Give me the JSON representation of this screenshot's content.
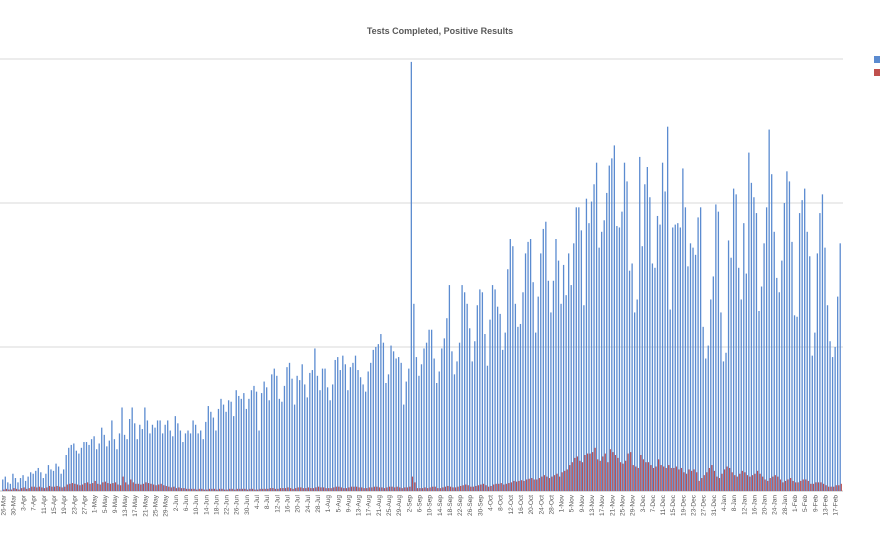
{
  "chart_data": {
    "type": "bar",
    "title": "Tests Completed, Positive Results",
    "xlabel": "",
    "ylabel": "",
    "units_note": "thousands (no y tick labels shown)",
    "ylim": [
      0,
      30
    ],
    "grid_step": 10,
    "grid": true,
    "legend_placement": "right",
    "start_date": "26-Mar",
    "tick_every_days": 4,
    "tick_labels": [
      "26-Mar",
      "30-Mar",
      "3-Apr",
      "7-Apr",
      "11-Apr",
      "15-Apr",
      "19-Apr",
      "23-Apr",
      "27-Apr",
      "1-May",
      "5-May",
      "9-May",
      "13-May",
      "17-May",
      "21-May",
      "25-May",
      "29-May",
      "2-Jun",
      "6-Jun",
      "10-Jun",
      "14-Jun",
      "18-Jun",
      "22-Jun",
      "26-Jun",
      "30-Jun",
      "4-Jul",
      "8-Jul",
      "12-Jul",
      "16-Jul",
      "20-Jul",
      "24-Jul",
      "28-Jul",
      "1-Aug",
      "5-Aug",
      "9-Aug",
      "13-Aug",
      "17-Aug",
      "21-Aug",
      "25-Aug",
      "29-Aug",
      "2-Sep",
      "6-Sep",
      "10-Sep",
      "14-Sep",
      "18-Sep",
      "22-Sep",
      "26-Sep",
      "30-Sep",
      "4-Oct",
      "8-Oct",
      "12-Oct",
      "16-Oct",
      "20-Oct",
      "24-Oct",
      "28-Oct",
      "1-Nov",
      "5-Nov",
      "9-Nov",
      "13-Nov",
      "17-Nov",
      "21-Nov",
      "25-Nov",
      "29-Nov",
      "3-Dec",
      "7-Dec",
      "11-Dec",
      "15-Dec",
      "19-Dec",
      "23-Dec",
      "27-Dec",
      "31-Dec",
      "4-Jan",
      "8-Jan",
      "12-Jan",
      "16-Jan",
      "20-Jan",
      "24-Jan",
      "28-Jan",
      "1-Feb",
      "5-Feb",
      "9-Feb",
      "13-Feb",
      "17-Feb"
    ],
    "series": [
      {
        "name": "Tests Completed",
        "color": "#5b8bd0",
        "values": [
          0.8,
          1.0,
          0.6,
          0.5,
          1.2,
          0.9,
          0.6,
          0.9,
          1.1,
          0.7,
          1.0,
          1.3,
          1.2,
          1.4,
          1.6,
          1.3,
          0.9,
          1.2,
          1.8,
          1.5,
          1.4,
          1.9,
          1.7,
          1.2,
          1.5,
          2.5,
          3.0,
          3.2,
          3.3,
          2.8,
          2.6,
          3.0,
          3.4,
          3.4,
          3.2,
          3.6,
          3.8,
          2.9,
          3.3,
          4.4,
          3.9,
          3.1,
          3.5,
          4.9,
          3.6,
          2.9,
          4.0,
          5.8,
          3.9,
          3.6,
          5.0,
          5.8,
          4.7,
          3.6,
          4.6,
          4.3,
          5.8,
          4.9,
          4.0,
          4.6,
          4.4,
          4.9,
          4.9,
          4.0,
          4.6,
          4.9,
          4.2,
          3.8,
          5.2,
          4.7,
          4.2,
          3.4,
          4.0,
          4.2,
          4.0,
          4.9,
          4.6,
          4.0,
          4.2,
          3.6,
          4.8,
          5.9,
          5.5,
          5.1,
          4.2,
          5.7,
          6.4,
          6.0,
          5.5,
          6.3,
          6.2,
          5.2,
          7.0,
          6.6,
          6.4,
          6.8,
          5.7,
          6.4,
          7.0,
          7.3,
          6.9,
          4.2,
          6.8,
          7.6,
          7.2,
          6.3,
          8.1,
          8.5,
          8.0,
          6.4,
          6.2,
          7.3,
          8.6,
          8.9,
          7.8,
          6.0,
          8.0,
          7.7,
          8.8,
          7.4,
          6.5,
          8.2,
          8.4,
          9.9,
          8.0,
          7.0,
          8.5,
          8.5,
          7.2,
          6.3,
          7.4,
          9.1,
          9.3,
          8.4,
          9.4,
          8.8,
          7.0,
          8.6,
          8.9,
          9.4,
          8.4,
          7.9,
          7.4,
          6.9,
          8.3,
          8.9,
          9.8,
          10.0,
          10.2,
          10.9,
          10.3,
          7.5,
          8.1,
          10.1,
          9.7,
          9.2,
          9.3,
          8.9,
          6.0,
          7.6,
          8.5,
          29.8,
          13.0,
          9.3,
          8.0,
          8.8,
          9.9,
          10.3,
          11.2,
          11.2,
          9.2,
          7.5,
          8.3,
          9.9,
          10.6,
          12.0,
          14.3,
          9.7,
          8.1,
          9.0,
          10.3,
          14.3,
          13.8,
          13.0,
          11.3,
          9.0,
          10.4,
          12.9,
          14.0,
          13.8,
          10.9,
          8.7,
          11.9,
          14.3,
          14.0,
          12.8,
          12.3,
          9.8,
          11.0,
          15.4,
          17.5,
          17.0,
          13.0,
          11.4,
          11.6,
          13.8,
          16.5,
          17.3,
          17.5,
          14.5,
          11.0,
          13.5,
          16.5,
          18.2,
          18.7,
          14.6,
          12.4,
          14.6,
          17.5,
          16.0,
          13.0,
          15.7,
          13.6,
          16.5,
          14.3,
          17.2,
          19.7,
          19.7,
          18.1,
          12.9,
          20.3,
          18.6,
          20.1,
          21.3,
          22.8,
          16.9,
          18.0,
          18.8,
          20.7,
          22.6,
          23.1,
          24.0,
          18.4,
          18.3,
          19.4,
          22.8,
          21.5,
          15.3,
          15.8,
          12.4,
          13.3,
          23.2,
          17.0,
          21.3,
          22.5,
          20.4,
          15.8,
          15.5,
          19.1,
          18.5,
          22.8,
          20.8,
          25.3,
          12.6,
          18.3,
          18.5,
          18.6,
          18.3,
          22.4,
          19.7,
          15.6,
          17.2,
          16.9,
          16.4,
          19.0,
          19.7,
          11.4,
          9.2,
          10.1,
          13.3,
          14.9,
          19.9,
          19.4,
          12.4,
          9.0,
          9.6,
          17.4,
          16.2,
          21.0,
          20.6,
          15.5,
          13.3,
          18.6,
          15.1,
          23.5,
          21.4,
          20.4,
          19.3,
          12.5,
          14.2,
          17.2,
          19.7,
          25.1,
          22.0,
          18.0,
          14.8,
          13.8,
          16.0,
          20.0,
          22.2,
          21.5,
          17.3,
          12.2,
          12.1,
          19.3,
          20.2,
          21.0,
          18.0,
          16.3,
          9.4,
          11.0,
          16.5,
          19.3,
          20.6,
          16.9,
          12.9,
          10.4,
          9.3,
          10.0,
          13.5,
          17.2
        ]
      },
      {
        "name": "Positive Results",
        "color": "#c0504d",
        "values": [
          0.1,
          0.15,
          0.1,
          0.1,
          0.2,
          0.15,
          0.1,
          0.2,
          0.25,
          0.15,
          0.2,
          0.3,
          0.3,
          0.25,
          0.3,
          0.25,
          0.2,
          0.25,
          0.35,
          0.3,
          0.3,
          0.35,
          0.3,
          0.25,
          0.3,
          0.45,
          0.5,
          0.55,
          0.5,
          0.45,
          0.4,
          0.45,
          0.55,
          0.6,
          0.5,
          0.55,
          0.7,
          0.5,
          0.45,
          0.6,
          0.65,
          0.55,
          0.5,
          0.55,
          0.6,
          0.45,
          0.4,
          1.0,
          0.6,
          0.45,
          0.8,
          0.6,
          0.5,
          0.5,
          0.45,
          0.5,
          0.6,
          0.55,
          0.5,
          0.45,
          0.4,
          0.45,
          0.5,
          0.4,
          0.35,
          0.3,
          0.25,
          0.3,
          0.2,
          0.25,
          0.2,
          0.2,
          0.15,
          0.15,
          0.15,
          0.15,
          0.1,
          0.15,
          0.15,
          0.1,
          0.1,
          0.15,
          0.15,
          0.15,
          0.1,
          0.15,
          0.15,
          0.1,
          0.1,
          0.15,
          0.15,
          0.1,
          0.15,
          0.15,
          0.15,
          0.15,
          0.1,
          0.15,
          0.15,
          0.1,
          0.1,
          0.15,
          0.15,
          0.15,
          0.15,
          0.2,
          0.2,
          0.15,
          0.15,
          0.2,
          0.2,
          0.2,
          0.25,
          0.2,
          0.15,
          0.2,
          0.25,
          0.25,
          0.2,
          0.2,
          0.25,
          0.2,
          0.2,
          0.25,
          0.3,
          0.25,
          0.25,
          0.2,
          0.2,
          0.2,
          0.25,
          0.3,
          0.3,
          0.25,
          0.2,
          0.2,
          0.25,
          0.3,
          0.3,
          0.3,
          0.25,
          0.25,
          0.2,
          0.2,
          0.25,
          0.25,
          0.3,
          0.3,
          0.25,
          0.25,
          0.2,
          0.25,
          0.3,
          0.3,
          0.25,
          0.3,
          0.25,
          0.2,
          0.25,
          0.25,
          0.3,
          1.0,
          0.6,
          0.2,
          0.2,
          0.2,
          0.25,
          0.2,
          0.25,
          0.3,
          0.3,
          0.2,
          0.2,
          0.25,
          0.3,
          0.35,
          0.3,
          0.25,
          0.25,
          0.3,
          0.35,
          0.4,
          0.45,
          0.4,
          0.3,
          0.3,
          0.35,
          0.4,
          0.45,
          0.5,
          0.4,
          0.3,
          0.35,
          0.45,
          0.5,
          0.5,
          0.55,
          0.45,
          0.5,
          0.55,
          0.6,
          0.7,
          0.65,
          0.7,
          0.75,
          0.7,
          0.8,
          0.85,
          0.9,
          0.8,
          0.8,
          0.9,
          1.0,
          1.1,
          1.0,
          0.9,
          1.0,
          1.1,
          1.2,
          1.0,
          1.3,
          1.4,
          1.5,
          1.8,
          2.0,
          2.3,
          2.4,
          2.1,
          2.0,
          2.5,
          2.6,
          2.6,
          2.7,
          3.0,
          2.2,
          2.1,
          2.4,
          2.6,
          2.0,
          2.9,
          2.7,
          2.5,
          2.3,
          2.0,
          1.9,
          2.1,
          2.6,
          2.7,
          1.8,
          1.7,
          1.6,
          2.5,
          2.2,
          2.0,
          2.0,
          1.8,
          1.6,
          1.7,
          2.2,
          1.8,
          1.7,
          1.6,
          1.8,
          1.6,
          1.6,
          1.7,
          1.5,
          1.6,
          1.3,
          1.2,
          1.5,
          1.4,
          1.5,
          1.3,
          0.7,
          0.9,
          1.1,
          1.3,
          1.6,
          1.8,
          1.4,
          1.0,
          0.9,
          1.2,
          1.5,
          1.7,
          1.6,
          1.3,
          1.1,
          1.0,
          1.2,
          1.4,
          1.3,
          1.1,
          1.0,
          1.1,
          1.2,
          1.4,
          1.2,
          1.0,
          0.8,
          0.7,
          0.9,
          1.0,
          1.1,
          1.0,
          0.8,
          0.6,
          0.7,
          0.8,
          0.9,
          0.7,
          0.6,
          0.6,
          0.7,
          0.8,
          0.8,
          0.7,
          0.5,
          0.5,
          0.6,
          0.6,
          0.6,
          0.5,
          0.4,
          0.3,
          0.3,
          0.3,
          0.4,
          0.4,
          0.5
        ]
      }
    ]
  }
}
